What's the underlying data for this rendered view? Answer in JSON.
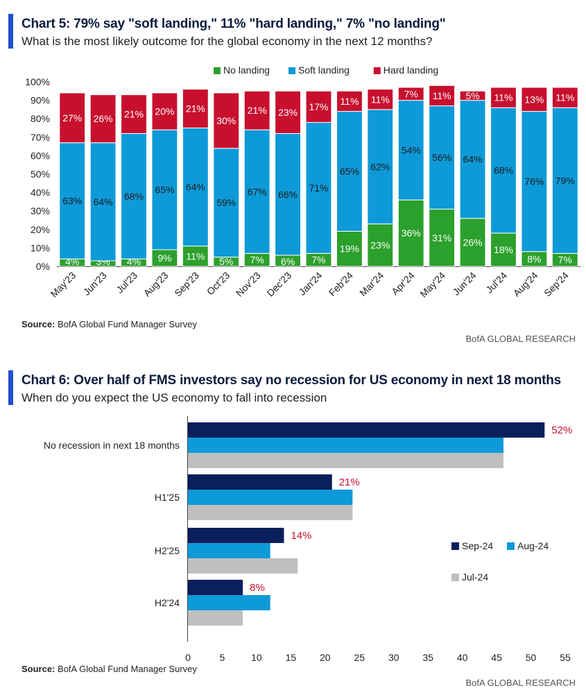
{
  "colors": {
    "accent": "#1f4fd1",
    "no_landing": "#2ca02c",
    "soft_landing": "#0e9ad8",
    "hard_landing": "#c8102e",
    "sep24": "#0b1f5c",
    "aug24": "#0e9ad8",
    "jul24": "#bfbfbf",
    "callout": "#c8102e"
  },
  "chart5": {
    "title": "Chart 5: 79% say \"soft landing,\" 11% \"hard landing,\" 7% \"no landing\"",
    "subtitle": "What is the most likely outcome for the global economy in the next 12 months?",
    "source_label": "Source:",
    "source_text": " BofA Global Fund Manager Survey",
    "brand": "BofA GLOBAL RESEARCH"
  },
  "chart6": {
    "title": "Chart 6: Over half of FMS investors say no recession for US economy in next 18 months",
    "subtitle": "When do you expect the US economy to fall into recession",
    "source_label": "Source:",
    "source_text": " BofA Global Fund Manager Survey",
    "brand": "BofA GLOBAL RESEARCH"
  },
  "chart_data": [
    {
      "type": "bar",
      "stacked": true,
      "categories": [
        "May'23",
        "Jun'23",
        "Jul'23",
        "Aug'23",
        "Sep'23",
        "Oct'23",
        "Nov'23",
        "Dec'23",
        "Jan'24",
        "Feb'24",
        "Mar'24",
        "Apr'24",
        "May'24",
        "Jun'24",
        "Jul'24",
        "Aug'24",
        "Sep'24"
      ],
      "series": [
        {
          "name": "No landing",
          "values": [
            4,
            3,
            4,
            9,
            11,
            5,
            7,
            6,
            7,
            19,
            23,
            36,
            31,
            26,
            18,
            8,
            7
          ],
          "labels": [
            "4%",
            "3%",
            "4%",
            "9%",
            "11%",
            "5%",
            "7%",
            "6%",
            "7%",
            "19%",
            "23%",
            "36%",
            "31%",
            "26%",
            "18%",
            "8%",
            "7%"
          ]
        },
        {
          "name": "Soft landing",
          "values": [
            63,
            64,
            68,
            65,
            64,
            59,
            67,
            66,
            71,
            65,
            62,
            54,
            56,
            64,
            68,
            76,
            79
          ],
          "labels": [
            "63%",
            "64%",
            "68%",
            "65%",
            "64%",
            "59%",
            "67%",
            "66%",
            "71%",
            "65%",
            "62%",
            "54%",
            "56%",
            "64%",
            "68%",
            "76%",
            "79%"
          ]
        },
        {
          "name": "Hard landing",
          "values": [
            27,
            26,
            21,
            20,
            21,
            30,
            21,
            23,
            17,
            11,
            11,
            7,
            11,
            5,
            11,
            13,
            11
          ],
          "labels": [
            "27%",
            "26%",
            "21%",
            "20%",
            "21%",
            "30%",
            "21%",
            "23%",
            "17%",
            "11%",
            "11%",
            "7%",
            "11%",
            "5%",
            "11%",
            "13%",
            "11%"
          ]
        }
      ],
      "yticks": [
        "0%",
        "10%",
        "20%",
        "30%",
        "40%",
        "50%",
        "60%",
        "70%",
        "80%",
        "90%",
        "100%"
      ],
      "ylim": [
        0,
        100
      ],
      "legend_position": "top-center",
      "grid": false
    },
    {
      "type": "bar",
      "orientation": "horizontal",
      "categories": [
        "No recession in next 18 months",
        "H1'25",
        "H2'25",
        "H2'24"
      ],
      "series": [
        {
          "name": "Sep-24",
          "values": [
            52,
            21,
            14,
            8
          ]
        },
        {
          "name": "Aug-24",
          "values": [
            46,
            24,
            12,
            12
          ]
        },
        {
          "name": "Jul-24",
          "values": [
            46,
            24,
            16,
            8
          ]
        }
      ],
      "callouts": [
        "52%",
        "21%",
        "14%",
        "8%"
      ],
      "xticks": [
        "0",
        "5",
        "10",
        "15",
        "20",
        "25",
        "30",
        "35",
        "40",
        "45",
        "50",
        "55"
      ],
      "xlim": [
        0,
        55
      ],
      "legend_position": "bottom-right",
      "grid": false
    }
  ]
}
